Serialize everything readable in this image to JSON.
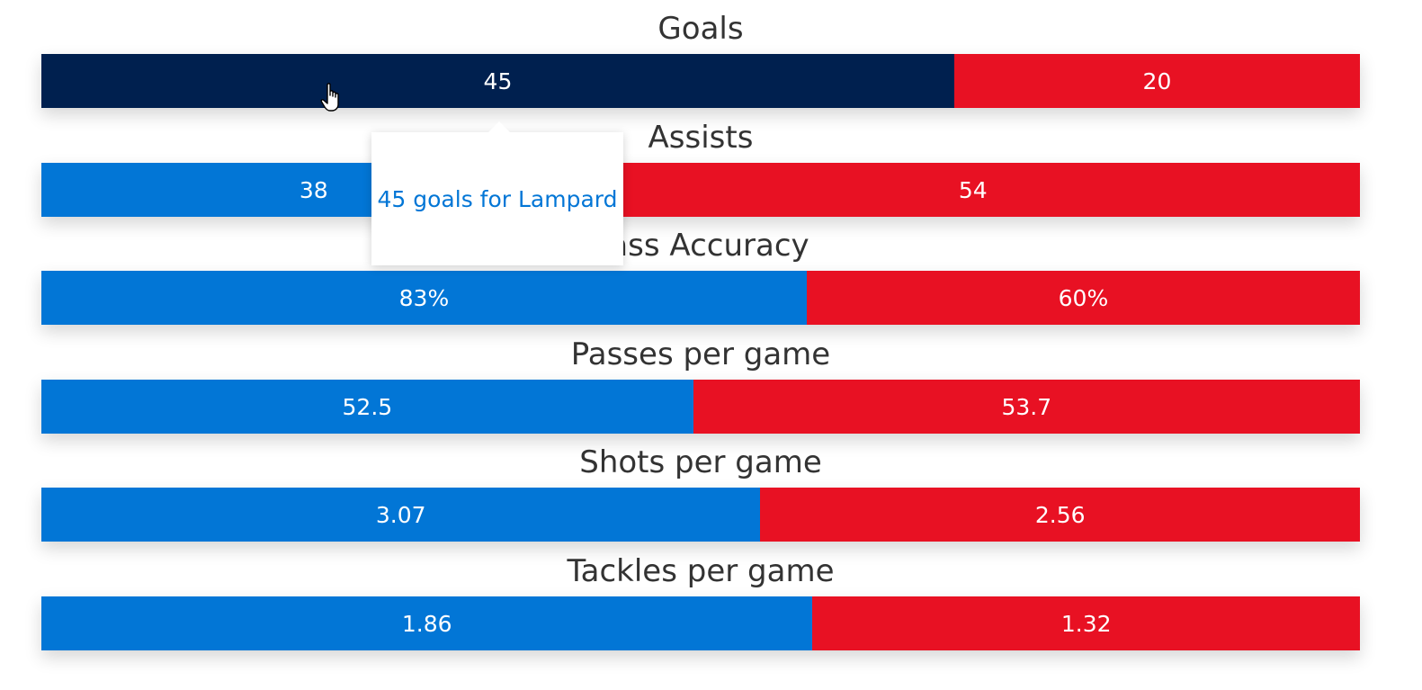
{
  "chart_data": {
    "type": "bar",
    "stacked": true,
    "orientation": "horizontal",
    "categories": [
      "Goals",
      "Assists",
      "Pass Accuracy",
      "Passes per game",
      "Shots per game",
      "Tackles per game"
    ],
    "series": [
      {
        "values": [
          45,
          38,
          83,
          52.5,
          3.07,
          1.86
        ],
        "labels": [
          "45",
          "38",
          "83%",
          "52.5",
          "3.07",
          "1.86"
        ],
        "color": "#0276d6"
      },
      {
        "values": [
          20,
          54,
          60,
          53.7,
          2.56,
          1.32
        ],
        "labels": [
          "20",
          "54",
          "60%",
          "53.7",
          "2.56",
          "1.32"
        ],
        "color": "#e81123"
      }
    ],
    "hover_color": "#00204f",
    "hovered": {
      "row": 0,
      "series": 0
    },
    "tooltip": "45 goals for Lampard"
  }
}
